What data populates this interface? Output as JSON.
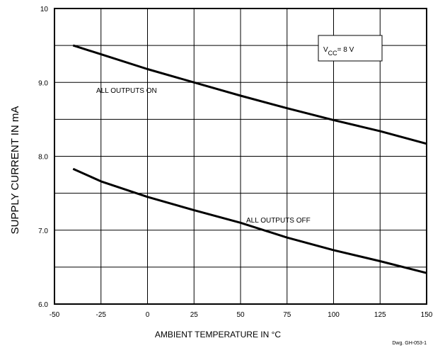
{
  "chart_data": {
    "type": "line",
    "xlabel": "AMBIENT TEMPERATURE IN °C",
    "ylabel": "SUPPLY CURRENT IN mA",
    "xlim": [
      -50,
      150
    ],
    "ylim": [
      6.0,
      10.0
    ],
    "x_ticks": [
      "-50",
      "-25",
      "0",
      "25",
      "50",
      "75",
      "100",
      "125",
      "150"
    ],
    "y_ticks": [
      {
        "value": 6.0,
        "label": "6.0"
      },
      {
        "value": 7.0,
        "label": "7.0"
      },
      {
        "value": 8.0,
        "label": "8.0"
      },
      {
        "value": 9.0,
        "label": "9.0"
      },
      {
        "value": 10.0,
        "label": "10"
      }
    ],
    "grid": true,
    "series": [
      {
        "name": "ALL OUTPUTS ON",
        "x": [
          -40,
          -25,
          0,
          25,
          50,
          75,
          100,
          125,
          150
        ],
        "y": [
          9.5,
          9.38,
          9.18,
          9.0,
          8.82,
          8.65,
          8.49,
          8.34,
          8.17
        ]
      },
      {
        "name": "ALL OUTPUTS OFF",
        "x": [
          -40,
          -25,
          0,
          25,
          50,
          75,
          100,
          125,
          150
        ],
        "y": [
          7.83,
          7.66,
          7.45,
          7.27,
          7.1,
          6.9,
          6.73,
          6.58,
          6.42
        ]
      }
    ],
    "annotations": {
      "condition": "VCC = 8 V",
      "condition_main": "V",
      "condition_sub": "CC",
      "condition_rest": "= 8 V"
    },
    "drawing_number": "Dwg. GH-053-1"
  }
}
